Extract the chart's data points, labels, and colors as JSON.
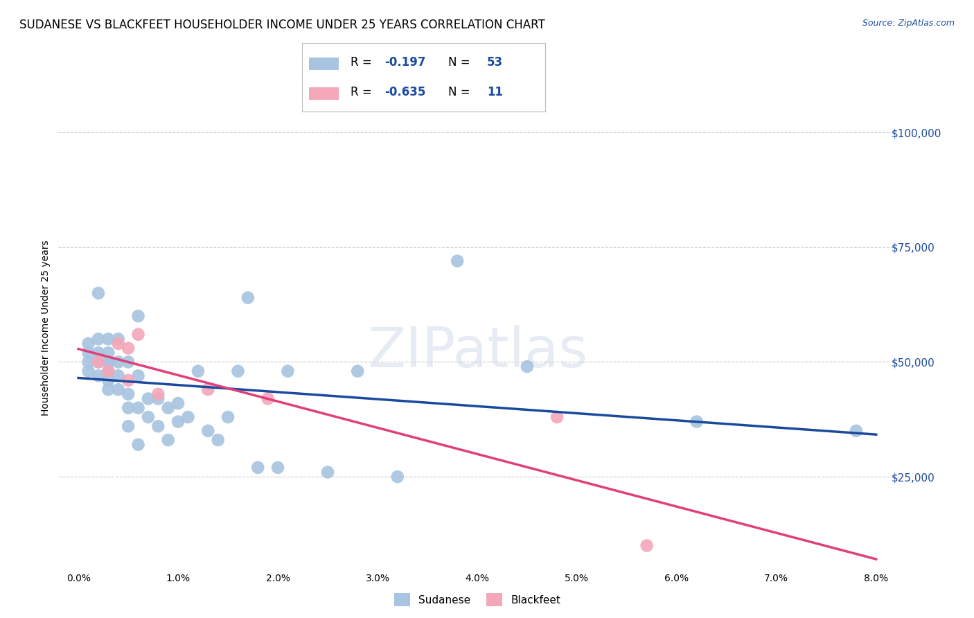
{
  "title": "SUDANESE VS BLACKFEET HOUSEHOLDER INCOME UNDER 25 YEARS CORRELATION CHART",
  "source": "Source: ZipAtlas.com",
  "ylabel": "Householder Income Under 25 years",
  "xlabel_ticks": [
    "0.0%",
    "1.0%",
    "2.0%",
    "3.0%",
    "4.0%",
    "5.0%",
    "6.0%",
    "7.0%",
    "8.0%"
  ],
  "xlabel_vals": [
    0.0,
    0.01,
    0.02,
    0.03,
    0.04,
    0.05,
    0.06,
    0.07,
    0.08
  ],
  "ytick_labels": [
    "$25,000",
    "$50,000",
    "$75,000",
    "$100,000"
  ],
  "ytick_vals": [
    25000,
    50000,
    75000,
    100000
  ],
  "ylim": [
    5000,
    110000
  ],
  "xlim": [
    -0.002,
    0.082
  ],
  "sudanese_color": "#a8c4e0",
  "blackfeet_color": "#f4a7b9",
  "sudanese_line_color": "#1a4a9e",
  "blackfeet_line_color": "#e0407a",
  "blue_text_color": "#1a4a9e",
  "sudanese_x": [
    0.001,
    0.001,
    0.001,
    0.001,
    0.002,
    0.002,
    0.002,
    0.002,
    0.002,
    0.003,
    0.003,
    0.003,
    0.003,
    0.003,
    0.003,
    0.003,
    0.004,
    0.004,
    0.004,
    0.004,
    0.005,
    0.005,
    0.005,
    0.005,
    0.006,
    0.006,
    0.006,
    0.006,
    0.007,
    0.007,
    0.008,
    0.008,
    0.009,
    0.009,
    0.01,
    0.01,
    0.011,
    0.012,
    0.013,
    0.014,
    0.015,
    0.016,
    0.017,
    0.018,
    0.02,
    0.021,
    0.025,
    0.028,
    0.032,
    0.038,
    0.045,
    0.062,
    0.078
  ],
  "sudanese_y": [
    48000,
    50000,
    52000,
    54000,
    47000,
    50000,
    52000,
    55000,
    65000,
    44000,
    46000,
    48000,
    50000,
    50000,
    52000,
    55000,
    44000,
    47000,
    50000,
    55000,
    36000,
    40000,
    43000,
    50000,
    32000,
    40000,
    47000,
    60000,
    38000,
    42000,
    36000,
    42000,
    33000,
    40000,
    37000,
    41000,
    38000,
    48000,
    35000,
    33000,
    38000,
    48000,
    64000,
    27000,
    27000,
    48000,
    26000,
    48000,
    25000,
    72000,
    49000,
    37000,
    35000
  ],
  "blackfeet_x": [
    0.002,
    0.003,
    0.004,
    0.005,
    0.005,
    0.006,
    0.008,
    0.013,
    0.019,
    0.048,
    0.057
  ],
  "blackfeet_y": [
    50000,
    48000,
    54000,
    53000,
    46000,
    56000,
    43000,
    44000,
    42000,
    38000,
    10000
  ],
  "watermark": "ZIPatlas",
  "background_color": "#ffffff",
  "grid_color": "#cccccc",
  "title_fontsize": 12,
  "label_fontsize": 10,
  "tick_fontsize": 10,
  "legend_R1": "R =  -0.197",
  "legend_N1": "N = 53",
  "legend_R2": "R =  -0.635",
  "legend_N2": "N =  11"
}
